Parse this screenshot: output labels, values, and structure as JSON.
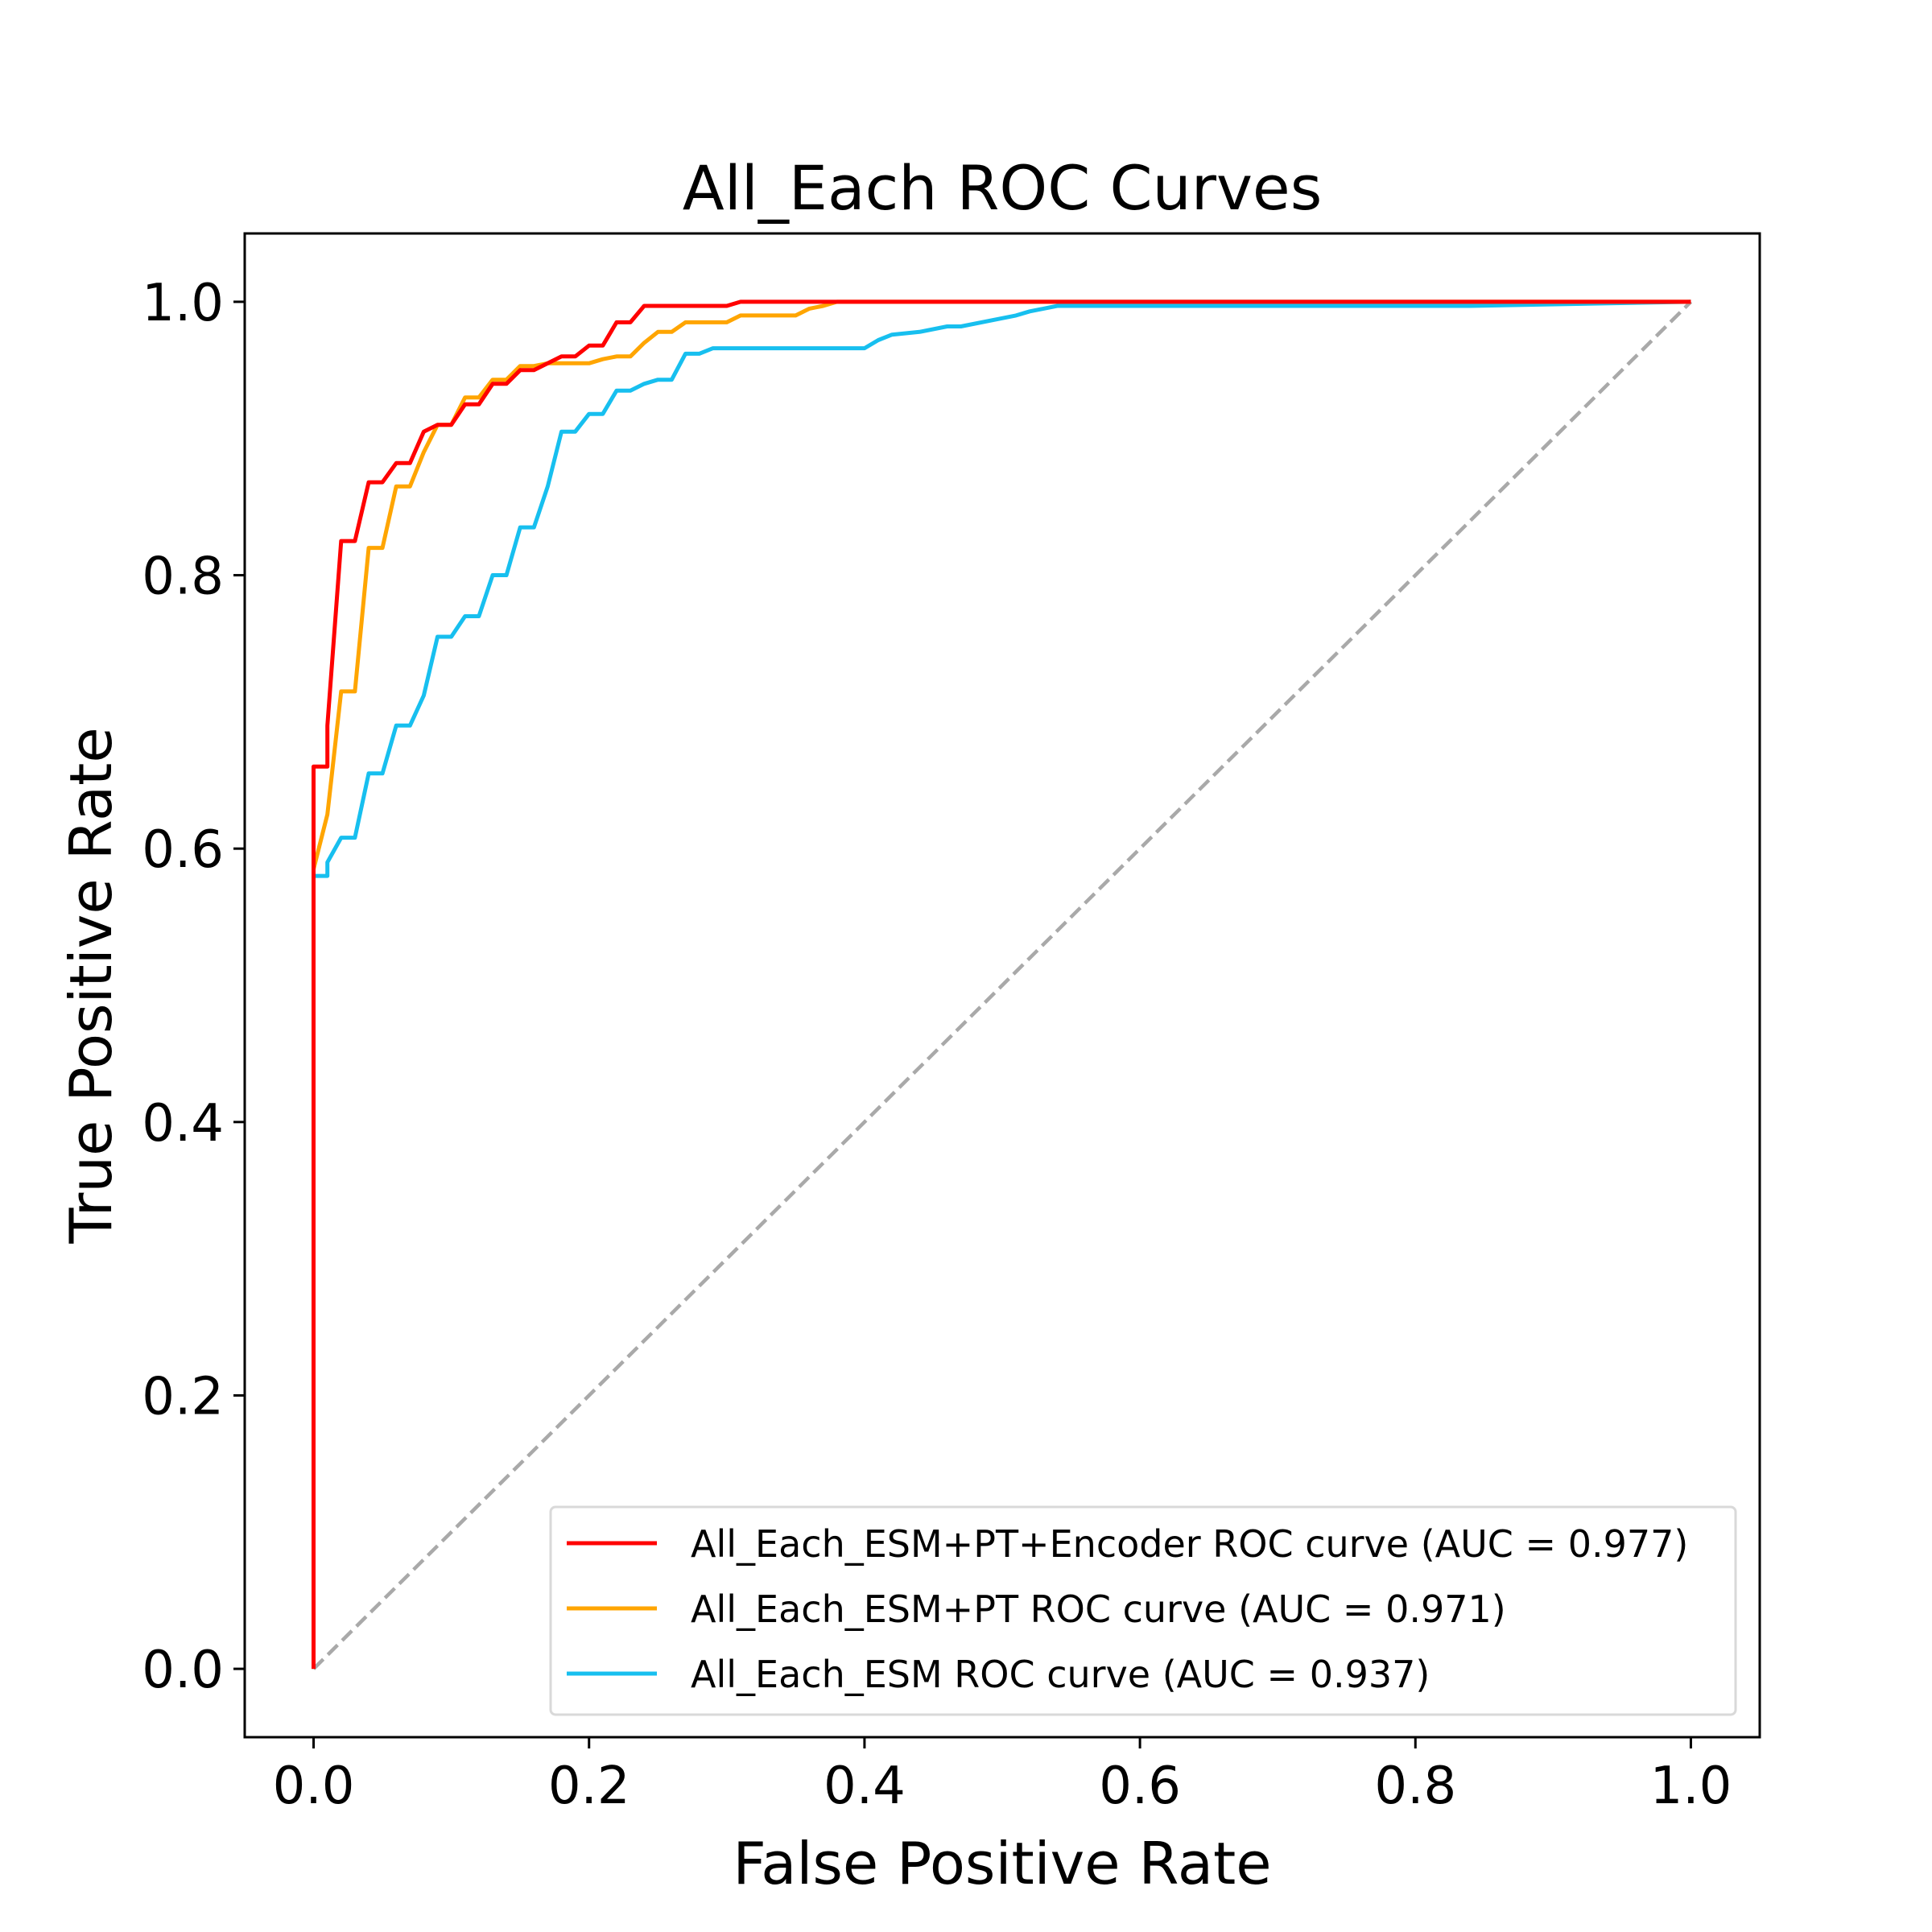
{
  "chart_data": {
    "type": "line",
    "title": "All_Each ROC Curves",
    "xlabel": "False Positive Rate",
    "ylabel": "True Positive Rate",
    "xlim": [
      -0.05,
      1.05
    ],
    "ylim": [
      -0.05,
      1.05
    ],
    "xticks": [
      0.0,
      0.2,
      0.4,
      0.6,
      0.8,
      1.0
    ],
    "yticks": [
      0.0,
      0.2,
      0.4,
      0.6,
      0.8,
      1.0
    ],
    "xtick_labels": [
      "0.0",
      "0.2",
      "0.4",
      "0.6",
      "0.8",
      "1.0"
    ],
    "ytick_labels": [
      "0.0",
      "0.2",
      "0.4",
      "0.6",
      "0.8",
      "1.0"
    ],
    "grid": false,
    "legend_position": "lower-right",
    "series": [
      {
        "name": "All_Each_ESM+PT+Encoder ROC curve (AUC = 0.977)",
        "color": "#ff0000",
        "x": [
          0,
          0,
          0.01,
          0.01,
          0.02,
          0.03,
          0.04,
          0.05,
          0.06,
          0.07,
          0.08,
          0.09,
          0.1,
          0.11,
          0.12,
          0.13,
          0.14,
          0.15,
          0.16,
          0.17,
          0.18,
          0.19,
          0.2,
          0.21,
          0.22,
          0.23,
          0.24,
          0.25,
          0.3,
          0.31,
          0.38,
          0.5,
          1.0
        ],
        "y": [
          0,
          0.66,
          0.66,
          0.69,
          0.825,
          0.825,
          0.868,
          0.868,
          0.882,
          0.882,
          0.905,
          0.91,
          0.91,
          0.925,
          0.925,
          0.94,
          0.94,
          0.95,
          0.95,
          0.955,
          0.96,
          0.96,
          0.968,
          0.968,
          0.985,
          0.985,
          0.997,
          0.997,
          0.997,
          1.0,
          1.0,
          1.0,
          1.0
        ]
      },
      {
        "name": "All_Each_ESM+PT ROC curve (AUC = 0.971)",
        "color": "#ffa500",
        "x": [
          0,
          0,
          0.01,
          0.01,
          0.02,
          0.03,
          0.04,
          0.05,
          0.06,
          0.07,
          0.08,
          0.09,
          0.1,
          0.11,
          0.12,
          0.13,
          0.14,
          0.15,
          0.16,
          0.17,
          0.18,
          0.2,
          0.21,
          0.22,
          0.23,
          0.24,
          0.25,
          0.26,
          0.27,
          0.28,
          0.3,
          0.31,
          0.35,
          0.36,
          0.37,
          0.38,
          0.84,
          1.0
        ],
        "y": [
          0,
          0.585,
          0.625,
          0.625,
          0.715,
          0.715,
          0.82,
          0.82,
          0.865,
          0.865,
          0.89,
          0.91,
          0.91,
          0.93,
          0.93,
          0.943,
          0.943,
          0.953,
          0.953,
          0.955,
          0.955,
          0.955,
          0.958,
          0.96,
          0.96,
          0.97,
          0.978,
          0.978,
          0.985,
          0.985,
          0.985,
          0.99,
          0.99,
          0.995,
          0.997,
          1.0,
          1.0,
          1.0
        ]
      },
      {
        "name": "All_Each_ESM ROC curve (AUC = 0.937)",
        "color": "#17bfef",
        "x": [
          0,
          0,
          0.01,
          0.01,
          0.02,
          0.03,
          0.04,
          0.05,
          0.06,
          0.07,
          0.08,
          0.09,
          0.1,
          0.11,
          0.12,
          0.13,
          0.14,
          0.15,
          0.16,
          0.17,
          0.18,
          0.19,
          0.2,
          0.21,
          0.22,
          0.23,
          0.24,
          0.25,
          0.26,
          0.27,
          0.28,
          0.29,
          0.3,
          0.35,
          0.4,
          0.41,
          0.42,
          0.44,
          0.46,
          0.47,
          0.5,
          0.51,
          0.52,
          0.53,
          0.54,
          0.84,
          1.0
        ],
        "y": [
          0,
          0.58,
          0.58,
          0.59,
          0.608,
          0.608,
          0.655,
          0.655,
          0.69,
          0.69,
          0.712,
          0.755,
          0.755,
          0.77,
          0.77,
          0.8,
          0.8,
          0.835,
          0.835,
          0.865,
          0.905,
          0.905,
          0.918,
          0.918,
          0.935,
          0.935,
          0.94,
          0.943,
          0.943,
          0.962,
          0.962,
          0.966,
          0.966,
          0.966,
          0.966,
          0.972,
          0.976,
          0.978,
          0.982,
          0.982,
          0.988,
          0.99,
          0.993,
          0.995,
          0.997,
          0.997,
          1.0
        ]
      }
    ],
    "reference_line": {
      "x": [
        0,
        1
      ],
      "y": [
        0,
        1
      ],
      "color": "#a9a9a9",
      "style": "dashed"
    }
  }
}
